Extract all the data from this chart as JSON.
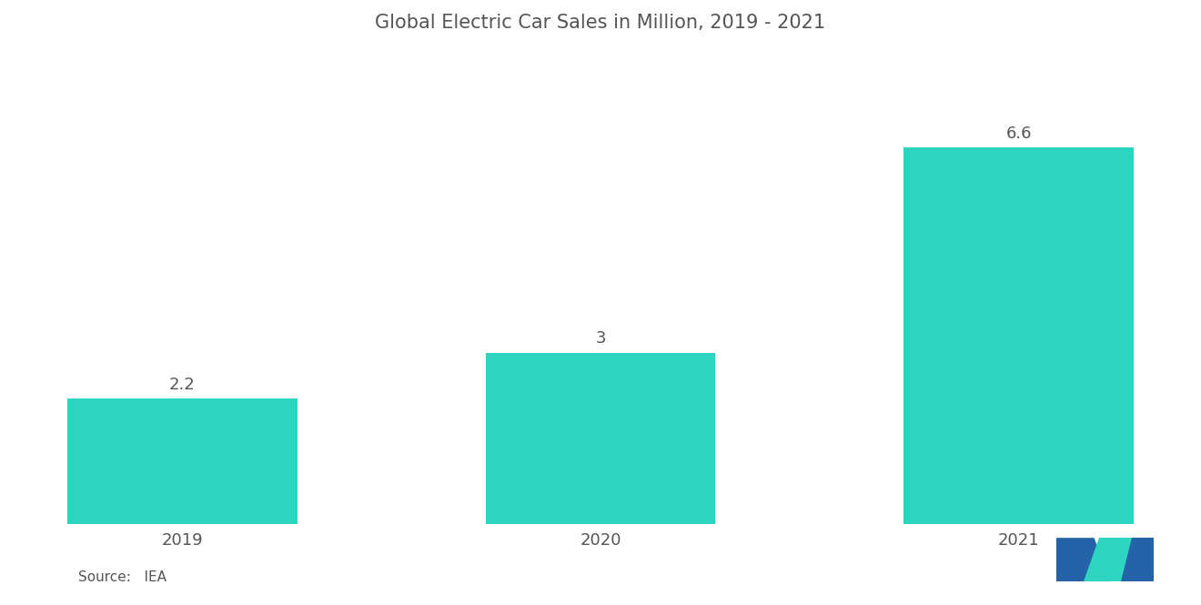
{
  "title": "Global Electric Car Sales in Million, 2019 - 2021",
  "categories": [
    "2019",
    "2020",
    "2021"
  ],
  "values": [
    2.2,
    3.0,
    6.6
  ],
  "bar_color": "#2DD4BF",
  "background_color": "#FFFFFF",
  "text_color": "#555555",
  "label_color": "#555555",
  "title_fontsize": 15,
  "label_fontsize": 13,
  "tick_fontsize": 13,
  "source_text": "Source:   IEA",
  "ylim": [
    0,
    8.2
  ],
  "bar_width": 0.55,
  "logo_blue": "#2563a8",
  "logo_teal": "#2DD4BF"
}
